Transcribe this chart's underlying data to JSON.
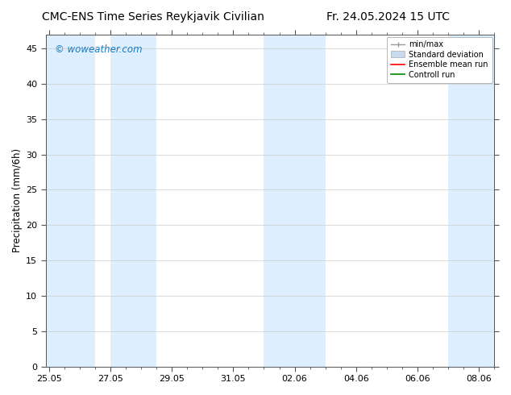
{
  "title_left": "CMC-ENS Time Series Reykjavik Civilian",
  "title_right": "Fr. 24.05.2024 15 UTC",
  "ylabel": "Precipitation (mm/6h)",
  "watermark": "© woweather.com",
  "watermark_color": "#1a7abf",
  "ylim": [
    0,
    47
  ],
  "yticks": [
    0,
    5,
    10,
    15,
    20,
    25,
    30,
    35,
    40,
    45
  ],
  "xlim_days": 14.5,
  "xtick_labels": [
    "25.05",
    "27.05",
    "29.05",
    "31.05",
    "02.06",
    "04.06",
    "06.06",
    "08.06"
  ],
  "xtick_positions_days": [
    0,
    2,
    4,
    6,
    8,
    10,
    12,
    14
  ],
  "shaded_bands": [
    {
      "start_day": -0.1,
      "end_day": 1.5,
      "color": "#ddeeff"
    },
    {
      "start_day": 2.0,
      "end_day": 3.5,
      "color": "#ddeeff"
    },
    {
      "start_day": 7.0,
      "end_day": 9.0,
      "color": "#ddeeff"
    },
    {
      "start_day": 13.0,
      "end_day": 14.6,
      "color": "#ddeeff"
    }
  ],
  "legend_labels": [
    "min/max",
    "Standard deviation",
    "Ensemble mean run",
    "Controll run"
  ],
  "legend_colors": [
    "#999999",
    "#c8daf0",
    "#ff0000",
    "#008800"
  ],
  "background_color": "#ffffff",
  "title_fontsize": 10,
  "tick_label_fontsize": 8,
  "ylabel_fontsize": 8.5
}
